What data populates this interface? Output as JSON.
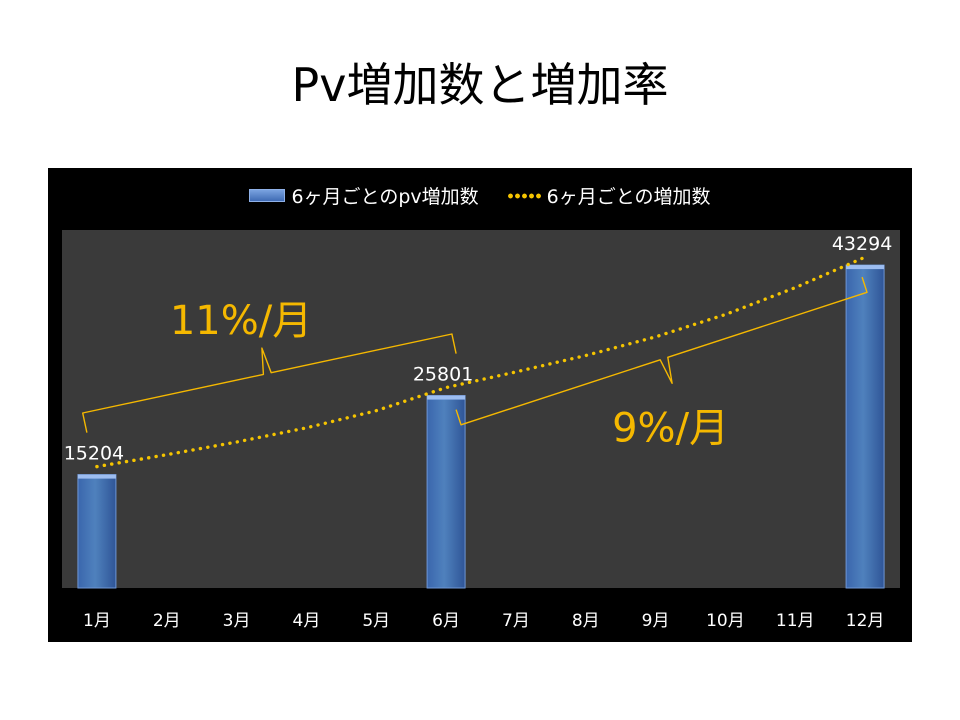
{
  "title": "Pv増加数と増加率",
  "colors": {
    "background": "#000000",
    "plot_area": "#3a3a3a",
    "bar": "#4f81bd",
    "trend": "#f5c400",
    "annotation": "#f5b800",
    "text": "#ffffff"
  },
  "chart_data": {
    "type": "bar",
    "title": "",
    "xlabel": "",
    "ylabel": "",
    "categories": [
      "1月",
      "2月",
      "3月",
      "4月",
      "5月",
      "6月",
      "7月",
      "8月",
      "9月",
      "10月",
      "11月",
      "12月"
    ],
    "ylim": [
      0,
      48000
    ],
    "grid": false,
    "legend_position": "top",
    "series": [
      {
        "name": "6ヶ月ごとのpv増加数",
        "type": "bar",
        "values": [
          15204,
          null,
          null,
          null,
          null,
          25801,
          null,
          null,
          null,
          null,
          null,
          43294
        ]
      },
      {
        "name": "6ヶ月ごとの増加数",
        "type": "line",
        "style": "dotted",
        "values": [
          15204,
          16800,
          18500,
          20400,
          22700,
          25801,
          27900,
          30100,
          32600,
          35600,
          39200,
          43294
        ]
      }
    ],
    "data_labels": [
      "15204",
      "25801",
      "43294"
    ],
    "annotations": [
      {
        "text": "11%/月",
        "from": "1月",
        "to": "6月"
      },
      {
        "text": "9%/月",
        "from": "6月",
        "to": "12月"
      }
    ]
  }
}
